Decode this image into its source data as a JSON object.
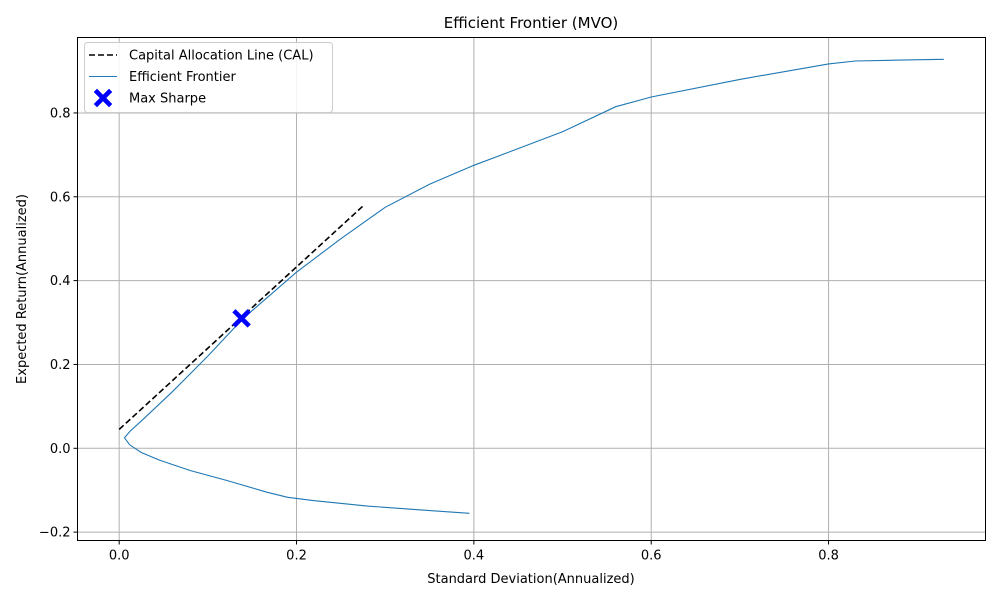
{
  "chart_data": {
    "type": "line",
    "title": "Efficient Frontier (MVO)",
    "xlabel": "Standard Deviation(Annualized)",
    "ylabel": "Expected Return(Annualized)",
    "xlim": [
      -0.047,
      0.977
    ],
    "ylim": [
      -0.22,
      0.98
    ],
    "xticks": [
      0.0,
      0.2,
      0.4,
      0.6,
      0.8
    ],
    "xtick_labels": [
      "0.0",
      "0.2",
      "0.4",
      "0.6",
      "0.8"
    ],
    "yticks": [
      -0.2,
      0.0,
      0.2,
      0.4,
      0.6,
      0.8
    ],
    "ytick_labels": [
      "−0.2",
      "0.0",
      "0.2",
      "0.4",
      "0.6",
      "0.8"
    ],
    "grid": true,
    "legend_position": "top-left",
    "legend": [
      {
        "label": "Capital Allocation Line (CAL)",
        "style": "dashed",
        "color": "#000000"
      },
      {
        "label": "Efficient Frontier",
        "style": "solid",
        "color": "#1f77b4"
      },
      {
        "label": "Max Sharpe",
        "style": "marker-x",
        "color": "#0000ff"
      }
    ],
    "series": [
      {
        "name": "Capital Allocation Line (CAL)",
        "color": "#000000",
        "style": "dashed",
        "points": [
          [
            0.0,
            0.045
          ],
          [
            0.276,
            0.58
          ]
        ]
      },
      {
        "name": "Efficient Frontier",
        "color": "#1f77b4",
        "style": "solid",
        "points": [
          [
            0.395,
            -0.155
          ],
          [
            0.34,
            -0.147
          ],
          [
            0.28,
            -0.138
          ],
          [
            0.22,
            -0.125
          ],
          [
            0.19,
            -0.117
          ],
          [
            0.167,
            -0.105
          ],
          [
            0.12,
            -0.076
          ],
          [
            0.08,
            -0.053
          ],
          [
            0.045,
            -0.028
          ],
          [
            0.025,
            -0.01
          ],
          [
            0.012,
            0.008
          ],
          [
            0.006,
            0.025
          ],
          [
            0.012,
            0.04
          ],
          [
            0.03,
            0.075
          ],
          [
            0.06,
            0.135
          ],
          [
            0.1,
            0.22
          ],
          [
            0.14,
            0.31
          ],
          [
            0.2,
            0.42
          ],
          [
            0.25,
            0.5
          ],
          [
            0.3,
            0.575
          ],
          [
            0.35,
            0.63
          ],
          [
            0.4,
            0.675
          ],
          [
            0.5,
            0.755
          ],
          [
            0.56,
            0.815
          ],
          [
            0.6,
            0.838
          ],
          [
            0.7,
            0.88
          ],
          [
            0.8,
            0.917
          ],
          [
            0.83,
            0.924
          ],
          [
            0.88,
            0.926
          ],
          [
            0.93,
            0.928
          ]
        ]
      },
      {
        "name": "Max Sharpe",
        "color": "#0000ff",
        "style": "marker",
        "points": [
          [
            0.138,
            0.31
          ]
        ]
      }
    ]
  }
}
